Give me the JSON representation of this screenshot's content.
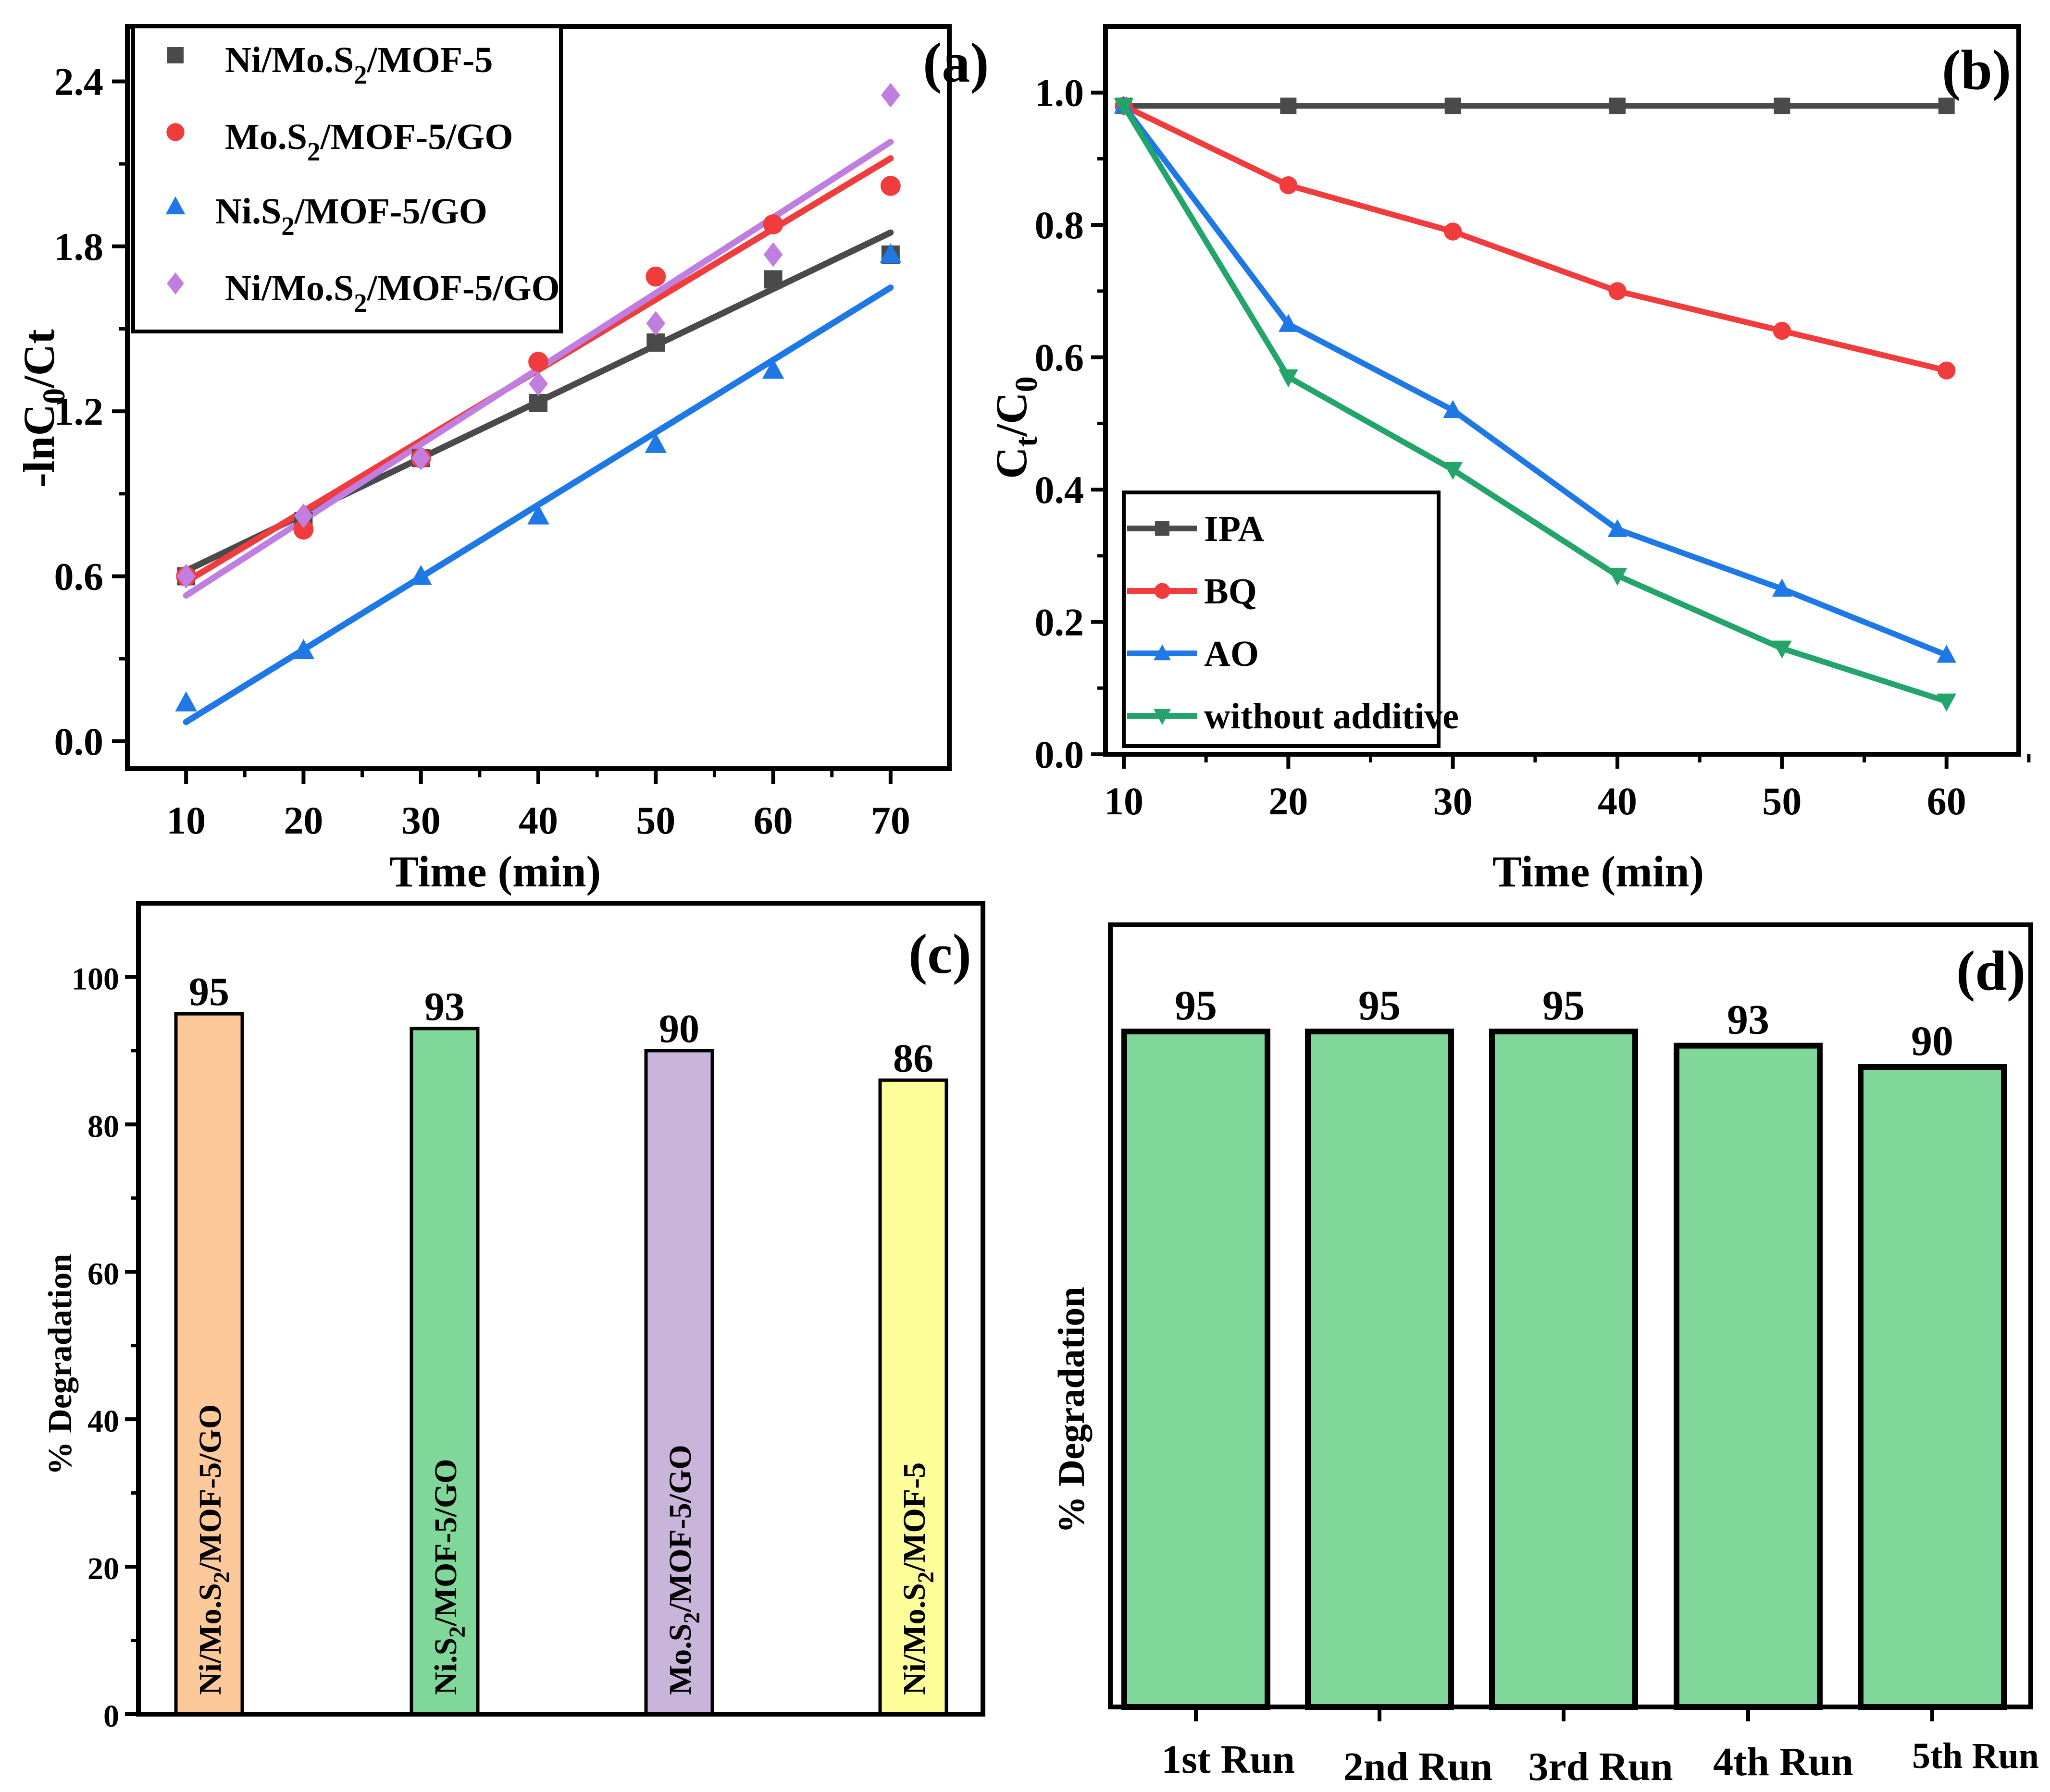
{
  "chart_data": [
    {
      "panel_label": "(a)",
      "type": "scatter",
      "title": "",
      "xlabel": "Time (min)",
      "ylabel": "-lnC0/Ct",
      "ylabel_parts": {
        "main": "-lnC",
        "sub1": "0",
        "mid": "/C",
        "sub2": "t"
      },
      "x": [
        10,
        20,
        30,
        40,
        50,
        60,
        70
      ],
      "xlim": [
        5,
        75
      ],
      "ylim": [
        -0.1,
        2.6
      ],
      "xticks": [
        10,
        20,
        30,
        40,
        50,
        60,
        70
      ],
      "yticks": [
        0.0,
        0.6,
        1.2,
        1.8,
        2.4
      ],
      "ytick_labels": [
        "0.0",
        "0.6",
        "1.2",
        "1.8",
        "2.4"
      ],
      "legend_position": "top-left",
      "series": [
        {
          "name": "Ni/Mo.S2/MOF-5",
          "legend": {
            "a": "Ni/Mo.S",
            "sub": "2",
            "b": "/MOF-5"
          },
          "marker": "square",
          "color": "#4a4a4a",
          "values": [
            0.6,
            0.8,
            1.03,
            1.23,
            1.45,
            1.68,
            1.77
          ],
          "fit": [
            0.62,
            1.85
          ]
        },
        {
          "name": "Mo.S2/MOF-5/GO",
          "legend": {
            "a": "Mo.S",
            "sub": "2",
            "b": "/MOF-5/GO"
          },
          "marker": "circle",
          "color": "#f03c3c",
          "values": [
            0.6,
            0.77,
            1.03,
            1.38,
            1.69,
            1.88,
            2.02
          ],
          "fit": [
            0.58,
            2.12
          ]
        },
        {
          "name": "Ni.S2/MOF-5/GO",
          "legend": {
            "a": "Ni.S",
            "sub": "2",
            "b": "/MOF-5/GO"
          },
          "marker": "triangle",
          "color": "#1e78e6",
          "values": [
            0.14,
            0.33,
            0.6,
            0.82,
            1.08,
            1.35,
            1.77
          ],
          "fit": [
            0.07,
            1.65
          ]
        },
        {
          "name": "Ni/Mo.S2/MOF-5/GO",
          "legend": {
            "a": "Ni/Mo.S",
            "sub": "2",
            "b": "/MOF-5/GO"
          },
          "marker": "diamond",
          "color": "#c07ee0",
          "values": [
            0.6,
            0.82,
            1.03,
            1.3,
            1.52,
            1.77,
            2.35
          ],
          "fit": [
            0.53,
            2.18
          ]
        }
      ]
    },
    {
      "panel_label": "(b)",
      "type": "line",
      "title": "",
      "xlabel": "Time (min)",
      "ylabel": "Ct/C0",
      "ylabel_parts": {
        "main": "C",
        "sub1": "t",
        "mid": "/C",
        "sub2": "0"
      },
      "x": [
        10,
        20,
        30,
        40,
        50,
        60
      ],
      "xlim": [
        10,
        65.5
      ],
      "ylim": [
        0,
        1.1
      ],
      "xticks": [
        10,
        20,
        30,
        40,
        50,
        60
      ],
      "yticks": [
        0.0,
        0.2,
        0.4,
        0.6,
        0.8,
        1.0
      ],
      "ytick_labels": [
        "0.0",
        "0.2",
        "0.4",
        "0.6",
        "0.8",
        "1.0"
      ],
      "legend_position": "bottom-left",
      "series": [
        {
          "name": "IPA",
          "marker": "square",
          "color": "#4a4a4a",
          "values": [
            0.98,
            0.98,
            0.98,
            0.98,
            0.98,
            0.98
          ]
        },
        {
          "name": "BQ",
          "marker": "circle",
          "color": "#f03c3c",
          "values": [
            0.98,
            0.86,
            0.79,
            0.7,
            0.64,
            0.58
          ]
        },
        {
          "name": "AO",
          "marker": "triangle",
          "color": "#1e78e6",
          "values": [
            0.98,
            0.65,
            0.52,
            0.34,
            0.25,
            0.15
          ]
        },
        {
          "name": "without additive",
          "marker": "triangle-down",
          "color": "#22a46a",
          "values": [
            0.98,
            0.57,
            0.43,
            0.27,
            0.16,
            0.08
          ]
        }
      ]
    },
    {
      "panel_label": "(c)",
      "type": "bar",
      "title": "",
      "xlabel": "",
      "ylabel": "% Degradation",
      "ylim": [
        0,
        110
      ],
      "yticks": [
        0,
        20,
        40,
        60,
        80,
        100
      ],
      "categories": [
        "Ni/Mo.S2/MOF-5/GO",
        "Ni.S2/MOF-5/GO",
        "Mo.S2/MOF-5/GO",
        "Ni/Mo.S2/MOF-5"
      ],
      "category_parts": [
        {
          "a": "Ni/Mo.S",
          "sub": "2",
          "b": "/MOF-5/GO"
        },
        {
          "a": "Ni.S",
          "sub": "2",
          "b": "/MOF-5/GO"
        },
        {
          "a": "Mo.S",
          "sub": "2",
          "b": "/MOF-5/GO"
        },
        {
          "a": "Ni/Mo.S",
          "sub": "2",
          "b": "/MOF-5"
        }
      ],
      "values": [
        95,
        93,
        90,
        86
      ],
      "colors": [
        "#fdc89a",
        "#7fd899",
        "#c9b4da",
        "#fdfd9a"
      ]
    },
    {
      "panel_label": "(d)",
      "type": "bar",
      "title": "",
      "xlabel": "",
      "ylabel": "% Degradation",
      "ylim": [
        0,
        110
      ],
      "categories": [
        "1st Run",
        "2nd Run",
        "3rd Run",
        "4th Run",
        "5th Run"
      ],
      "values": [
        95,
        95,
        95,
        93,
        90
      ],
      "colors": [
        "#7fd899",
        "#7fd899",
        "#7fd899",
        "#7fd899",
        "#7fd899"
      ]
    }
  ]
}
